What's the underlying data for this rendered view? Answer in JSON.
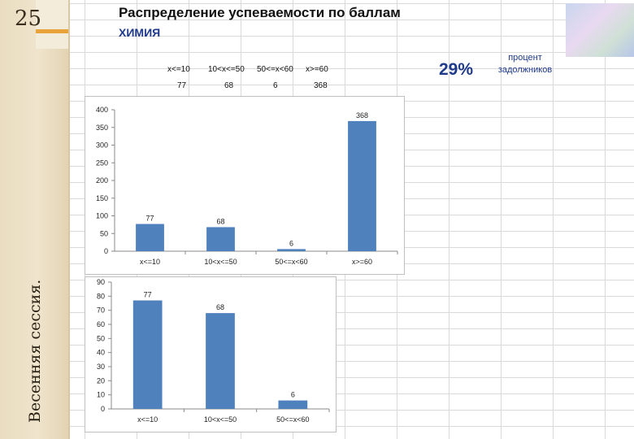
{
  "slide_number": "25",
  "vertical_title": "Весенняя сессия.",
  "title": "Распределение успеваемости по баллам",
  "subtitle": "ХИМИЯ",
  "percent": "29%",
  "percent_label_line1": "процент",
  "percent_label_line2": "задолжников",
  "range_table": {
    "headers": [
      "x<=10",
      "10<x<=50",
      "50<=x<60",
      "x>=60"
    ],
    "values": [
      "77",
      "68",
      "6",
      "368"
    ]
  },
  "colors": {
    "bar": "#4f81bd",
    "accent": "#1f3a8a",
    "strip": "#e9dcc0"
  },
  "chart_data": [
    {
      "type": "bar",
      "categories": [
        "x<=10",
        "10<x<=50",
        "50<=x<60",
        "x>=60"
      ],
      "values": [
        77,
        68,
        6,
        368
      ],
      "data_labels": [
        "77",
        "68",
        "6",
        "368"
      ],
      "ylim": [
        0,
        400
      ],
      "yticks": [
        0,
        50,
        100,
        150,
        200,
        250,
        300,
        350,
        400
      ],
      "grid": false,
      "legend": "none"
    },
    {
      "type": "bar",
      "categories": [
        "x<=10",
        "10<x<=50",
        "50<=x<60"
      ],
      "values": [
        77,
        68,
        6
      ],
      "data_labels": [
        "77",
        "68",
        "6"
      ],
      "ylim": [
        0,
        90
      ],
      "yticks": [
        0,
        10,
        20,
        30,
        40,
        50,
        60,
        70,
        80,
        90
      ],
      "grid": false,
      "legend": "none"
    }
  ]
}
